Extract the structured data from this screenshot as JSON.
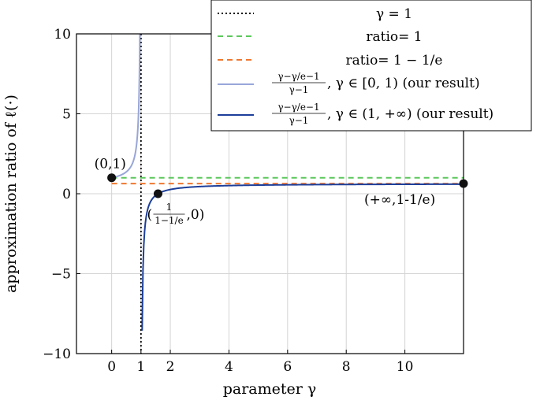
{
  "chart_data": {
    "type": "line",
    "xlabel": "parameter γ",
    "ylabel": "approximation ratio of ℓ(·)",
    "xlim": [
      -1.2,
      12.0
    ],
    "ylim": [
      -10,
      10
    ],
    "xticks": [
      0,
      1,
      2,
      4,
      6,
      8,
      10
    ],
    "xtick_labels": [
      "0",
      "1",
      "2",
      "4",
      "6",
      "8",
      "10"
    ],
    "yticks": [
      -10,
      -5,
      0,
      5,
      10
    ],
    "ytick_labels": [
      "−10",
      "−5",
      "0",
      "5",
      "10"
    ],
    "grid": true,
    "legend_position": "top-right",
    "series": [
      {
        "name": "γ = 1",
        "style": "dotted",
        "color": "#000000",
        "kind": "vline",
        "x": 1
      },
      {
        "name": "ratio= 1",
        "style": "dashed",
        "color": "#5cc85c",
        "kind": "hline",
        "y": 1,
        "x_range": [
          0,
          12
        ]
      },
      {
        "name": "ratio= 1 − 1/e",
        "style": "dashed",
        "color": "#f07830",
        "kind": "hline",
        "y": 0.632,
        "x_range": [
          0,
          12
        ]
      },
      {
        "name_parts": {
          "frac_num": "γ−γ/e−1",
          "frac_den": "γ−1",
          "rest": ", γ ∈ [0, 1) (our result)"
        },
        "style": "solid",
        "color": "#98a6d8",
        "kind": "function",
        "domain": [
          0,
          0.97
        ]
      },
      {
        "name_parts": {
          "frac_num": "γ−γ/e−1",
          "frac_den": "γ−1",
          "rest": ", γ ∈ (1, +∞) (our result)"
        },
        "style": "solid",
        "color": "#1d3f9a",
        "kind": "function",
        "domain": [
          1.04,
          12
        ]
      }
    ],
    "points": [
      {
        "x": 0,
        "y": 1,
        "label": "(0,1)"
      },
      {
        "x": 1.582,
        "y": 0,
        "label_frac_num": "1",
        "label_frac_den": "1−1/e",
        "label_open": "(",
        "label_close": ",0)"
      },
      {
        "x": 12,
        "y": 0.632,
        "label": "(+∞,1-1/e)"
      }
    ]
  }
}
